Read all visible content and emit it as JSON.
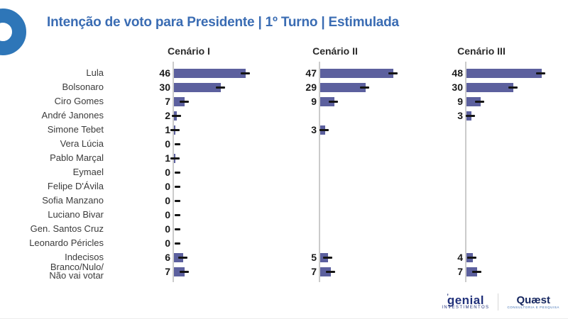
{
  "header": {
    "title": "Intenção de voto para Presidente | 1º Turno | Estimulada"
  },
  "colors": {
    "bar": "#5c609e",
    "whisker": "#151515",
    "axis": "#cbcbcb",
    "title_blue": "#3a6cb3",
    "brand_blue": "#2e76b8",
    "logo_navy": "#20307a"
  },
  "logos": {
    "genial": {
      "name": "genial",
      "sub": "investimentos"
    },
    "quaest": {
      "name": "Quæst",
      "sub": "consultoria e pesquisa"
    }
  },
  "chart_data": {
    "type": "bar",
    "orientation": "horizontal",
    "title": "Intenção de voto para Presidente | 1º Turno | Estimulada",
    "value_labels": true,
    "error_bars": true,
    "grid": false,
    "xlim": [
      0,
      50
    ],
    "categories": [
      "Lula",
      "Bolsonaro",
      "Ciro Gomes",
      "André Janones",
      "Simone Tebet",
      "Vera Lúcia",
      "Pablo Marçal",
      "Eymael",
      "Felipe D'Ávila",
      "Sofia Manzano",
      "Luciano Bivar",
      "Gen. Santos Cruz",
      "Leonardo Péricles",
      "Indecisos",
      "Branco/Nulo/|Não vai votar"
    ],
    "series": [
      {
        "name": "Cenário I",
        "values": [
          46,
          30,
          7,
          2,
          1,
          0,
          1,
          0,
          0,
          0,
          0,
          0,
          0,
          6,
          7
        ]
      },
      {
        "name": "Cenário II",
        "values": [
          47,
          29,
          9,
          null,
          3,
          null,
          null,
          null,
          null,
          null,
          null,
          null,
          null,
          5,
          7
        ]
      },
      {
        "name": "Cenário III",
        "values": [
          48,
          30,
          9,
          3,
          null,
          null,
          null,
          null,
          null,
          null,
          null,
          null,
          null,
          4,
          7
        ]
      }
    ]
  }
}
